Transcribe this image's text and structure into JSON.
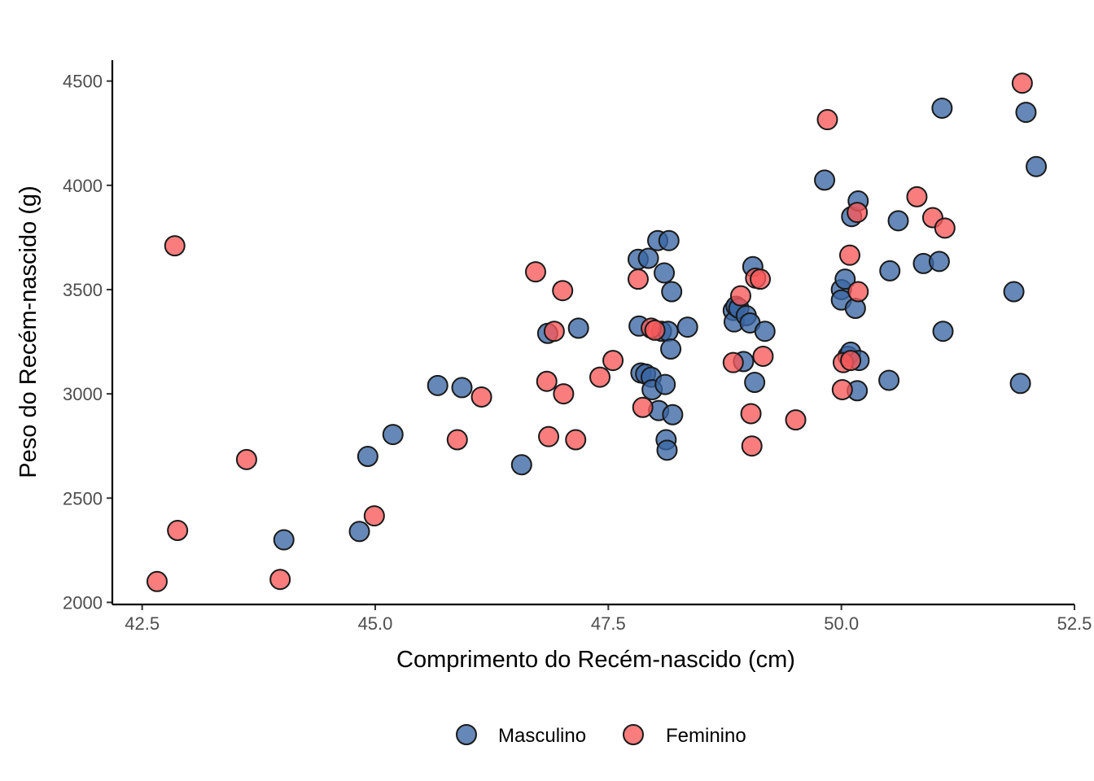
{
  "chart_data": {
    "type": "scatter",
    "xlabel": "Comprimento do Recém-nascido (cm)",
    "ylabel": "Peso do Recém-nascido (g)",
    "xlim": [
      42.18,
      52.5
    ],
    "ylim": [
      1990,
      4600
    ],
    "x_ticks": [
      42.5,
      45.0,
      47.5,
      50.0,
      52.5
    ],
    "x_tick_labels": [
      "42.5",
      "45.0",
      "47.5",
      "50.0",
      "52.5"
    ],
    "y_ticks": [
      2000,
      2500,
      3000,
      3500,
      4000,
      4500
    ],
    "y_tick_labels": [
      "2000",
      "2500",
      "3000",
      "3500",
      "4000",
      "4500"
    ],
    "grid": false,
    "legend_position": "bottom",
    "series": [
      {
        "name": "Masculino",
        "color": "#3a67a4",
        "points": [
          [
            44.02,
            2300
          ],
          [
            44.83,
            2340
          ],
          [
            44.92,
            2700
          ],
          [
            45.19,
            2805
          ],
          [
            45.67,
            3040
          ],
          [
            45.93,
            3030
          ],
          [
            46.57,
            2660
          ],
          [
            46.85,
            3290
          ],
          [
            47.18,
            3315
          ],
          [
            47.82,
            3645
          ],
          [
            47.83,
            3325
          ],
          [
            47.85,
            3100
          ],
          [
            47.9,
            3095
          ],
          [
            47.93,
            3650
          ],
          [
            47.96,
            3080
          ],
          [
            47.97,
            3020
          ],
          [
            48.03,
            3735
          ],
          [
            48.04,
            2920
          ],
          [
            48.07,
            3300
          ],
          [
            48.1,
            3580
          ],
          [
            48.11,
            3045
          ],
          [
            48.12,
            2780
          ],
          [
            48.13,
            2730
          ],
          [
            48.14,
            3300
          ],
          [
            48.15,
            3735
          ],
          [
            48.17,
            3215
          ],
          [
            48.18,
            3490
          ],
          [
            48.19,
            2900
          ],
          [
            48.35,
            3320
          ],
          [
            48.84,
            3400
          ],
          [
            48.85,
            3345
          ],
          [
            48.87,
            3420
          ],
          [
            48.9,
            3410
          ],
          [
            48.95,
            3155
          ],
          [
            48.98,
            3375
          ],
          [
            49.02,
            3340
          ],
          [
            49.05,
            3610
          ],
          [
            49.07,
            3055
          ],
          [
            49.18,
            3300
          ],
          [
            49.82,
            4025
          ],
          [
            50.0,
            3500
          ],
          [
            50.0,
            3450
          ],
          [
            50.04,
            3550
          ],
          [
            50.07,
            3180
          ],
          [
            50.1,
            3200
          ],
          [
            50.11,
            3850
          ],
          [
            50.15,
            3410
          ],
          [
            50.17,
            3015
          ],
          [
            50.18,
            3925
          ],
          [
            50.19,
            3160
          ],
          [
            50.51,
            3065
          ],
          [
            50.52,
            3590
          ],
          [
            50.61,
            3830
          ],
          [
            50.88,
            3625
          ],
          [
            51.05,
            3635
          ],
          [
            51.08,
            4370
          ],
          [
            51.09,
            3300
          ],
          [
            51.85,
            3490
          ],
          [
            51.92,
            3050
          ],
          [
            51.98,
            4350
          ],
          [
            52.09,
            4090
          ]
        ]
      },
      {
        "name": "Feminino",
        "color": "#f8595a",
        "points": [
          [
            42.66,
            2100
          ],
          [
            42.85,
            3710
          ],
          [
            42.88,
            2345
          ],
          [
            43.62,
            2685
          ],
          [
            43.98,
            2110
          ],
          [
            44.99,
            2415
          ],
          [
            45.88,
            2780
          ],
          [
            46.14,
            2985
          ],
          [
            46.72,
            3585
          ],
          [
            46.84,
            3060
          ],
          [
            46.86,
            2795
          ],
          [
            46.92,
            3300
          ],
          [
            47.01,
            3495
          ],
          [
            47.02,
            3000
          ],
          [
            47.15,
            2780
          ],
          [
            47.41,
            3080
          ],
          [
            47.55,
            3160
          ],
          [
            47.82,
            3550
          ],
          [
            47.87,
            2935
          ],
          [
            47.96,
            3315
          ],
          [
            48.0,
            3305
          ],
          [
            48.84,
            3150
          ],
          [
            48.92,
            3470
          ],
          [
            49.03,
            2905
          ],
          [
            49.04,
            2750
          ],
          [
            49.08,
            3555
          ],
          [
            49.13,
            3550
          ],
          [
            49.16,
            3180
          ],
          [
            49.51,
            2875
          ],
          [
            49.85,
            4315
          ],
          [
            50.01,
            3020
          ],
          [
            50.02,
            3150
          ],
          [
            50.09,
            3665
          ],
          [
            50.1,
            3160
          ],
          [
            50.17,
            3870
          ],
          [
            50.18,
            3490
          ],
          [
            50.81,
            3945
          ],
          [
            50.98,
            3845
          ],
          [
            51.11,
            3795
          ],
          [
            51.94,
            4490
          ]
        ]
      }
    ]
  }
}
